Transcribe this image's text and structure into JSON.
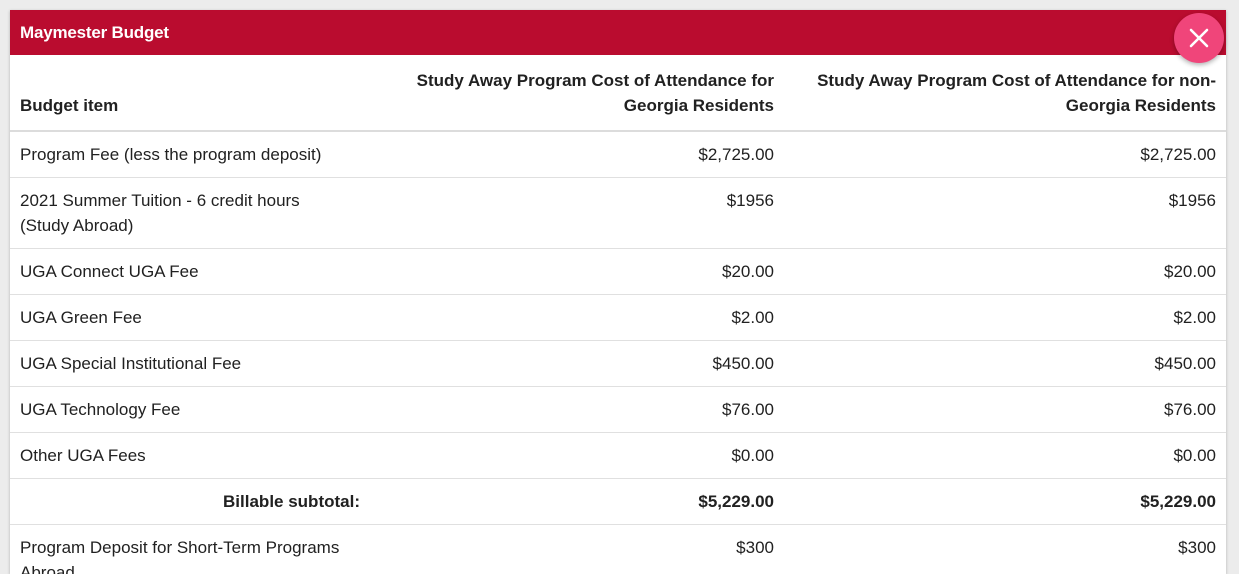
{
  "modal": {
    "title": "Maymester Budget",
    "close_icon": "close-icon",
    "close_color": "#f0457a",
    "header_color": "#ba0c2f"
  },
  "table": {
    "headers": [
      "Budget item",
      "Study Away Program Cost of Attendance for Georgia Residents",
      "Study Away Program Cost of Attendance for non-Georgia Residents"
    ],
    "rows": [
      {
        "item": "Program Fee (less the program deposit)",
        "ga": "$2,725.00",
        "non_ga": "$2,725.00"
      },
      {
        "item": "2021 Summer Tuition - 6 credit hours (Study Abroad)",
        "ga": "$1956",
        "non_ga": "$1956"
      },
      {
        "item": "UGA Connect UGA Fee",
        "ga": "$20.00",
        "non_ga": "$20.00"
      },
      {
        "item": "UGA Green Fee",
        "ga": "$2.00",
        "non_ga": "$2.00"
      },
      {
        "item": "UGA Special Institutional Fee",
        "ga": "$450.00",
        "non_ga": "$450.00"
      },
      {
        "item": "UGA Technology Fee",
        "ga": "$76.00",
        "non_ga": "$76.00"
      },
      {
        "item": "Other UGA Fees",
        "ga": "$0.00",
        "non_ga": "$0.00"
      },
      {
        "item": "Billable subtotal:",
        "ga": "$5,229.00",
        "non_ga": "$5,229.00"
      },
      {
        "item": "Program Deposit for Short-Term Programs Abroad",
        "ga": "$300",
        "non_ga": "$300"
      }
    ]
  }
}
